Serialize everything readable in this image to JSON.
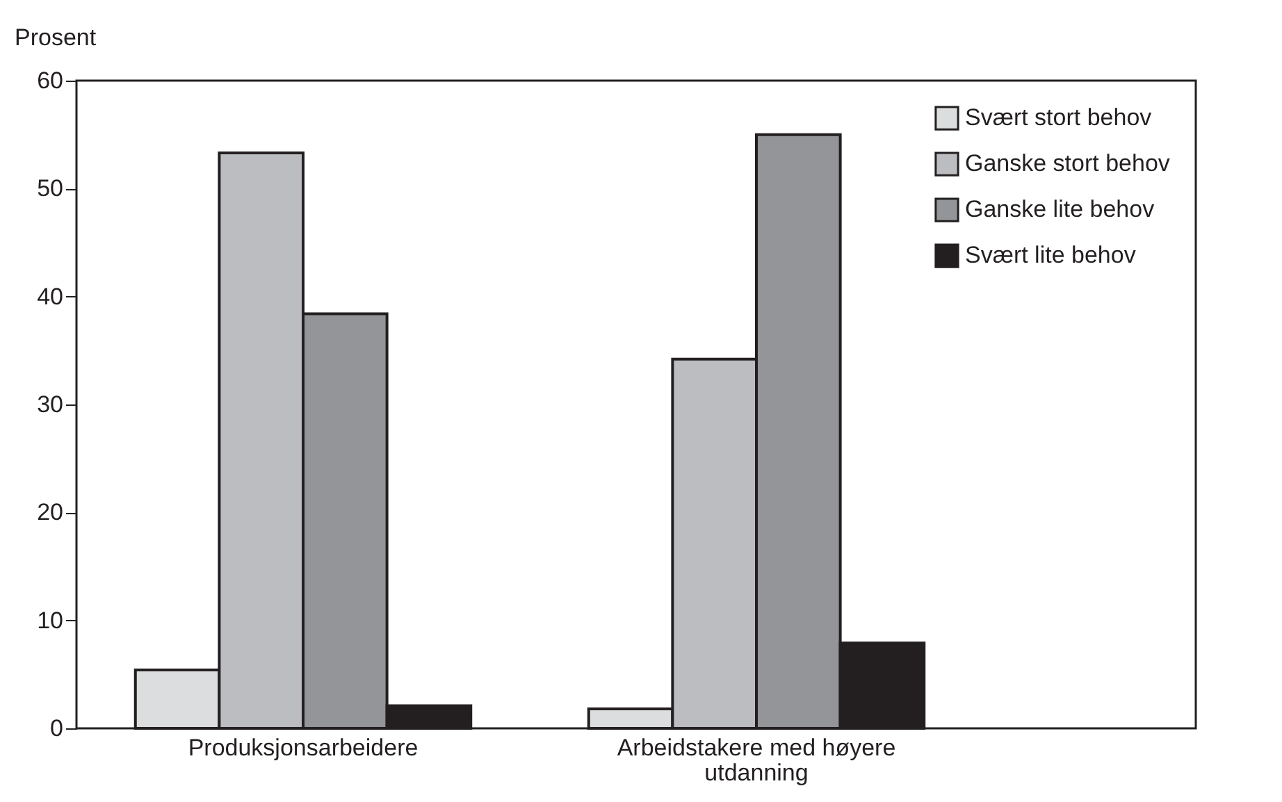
{
  "chart_data": {
    "type": "bar",
    "ylabel": "Prosent",
    "categories": [
      "Produksjonsarbeidere",
      "Arbeidstakere med høyere utdanning"
    ],
    "series": [
      {
        "name": "Svært stort behov",
        "color": "#dcdddf",
        "values": [
          5.4,
          1.8
        ]
      },
      {
        "name": "Ganske stort behov",
        "color": "#bcbdc1",
        "values": [
          53.3,
          34.2
        ]
      },
      {
        "name": "Ganske lite behov",
        "color": "#949599",
        "values": [
          38.4,
          55
        ]
      },
      {
        "name": "Svært lite behov",
        "color": "#231f20",
        "values": [
          2.1,
          7.9
        ]
      }
    ],
    "ylim": [
      0,
      60
    ],
    "yticks": [
      0,
      10,
      20,
      30,
      40,
      50,
      60
    ],
    "grid": false,
    "legend": "top right"
  }
}
